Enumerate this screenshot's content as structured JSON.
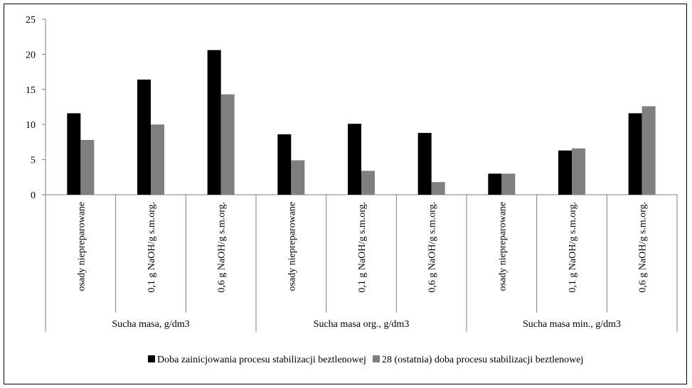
{
  "chart_data": {
    "type": "bar",
    "title": "",
    "xlabel": "",
    "ylabel": "",
    "ylim": [
      0,
      25
    ],
    "yticks": [
      0,
      5,
      10,
      15,
      20,
      25
    ],
    "grid": false,
    "legend_position": "bottom",
    "groups": [
      {
        "label": "Sucha masa, g/dm3",
        "categories": [
          "osady niepreparowane",
          "0,1 g NaOH/g s.m.org.",
          "0,6 g NaOH/g s.m.org."
        ]
      },
      {
        "label": "Sucha masa org., g/dm3",
        "categories": [
          "osady niepreparowane",
          "0,1 g NaOH/g s.m.org.",
          "0,6 g NaOH/g s.m.org."
        ]
      },
      {
        "label": "Sucha masa min., g/dm3",
        "categories": [
          "osady niepreparowane",
          "0,1 g NaOH/g s.m.org.",
          "0,6 g NaOH/g s.m.org."
        ]
      }
    ],
    "series": [
      {
        "name": "Doba zainicjowania procesu stabilizacji beztlenowej",
        "color": "#000000",
        "values": [
          11.6,
          16.4,
          20.6,
          8.6,
          10.1,
          8.8,
          3.0,
          6.3,
          11.6
        ]
      },
      {
        "name": "28 (ostatnia) doba procesu stabilizacji beztlenowej",
        "color": "#7f7f7f",
        "values": [
          7.8,
          10.0,
          14.3,
          4.9,
          3.4,
          1.8,
          3.0,
          6.6,
          12.6
        ]
      }
    ]
  }
}
